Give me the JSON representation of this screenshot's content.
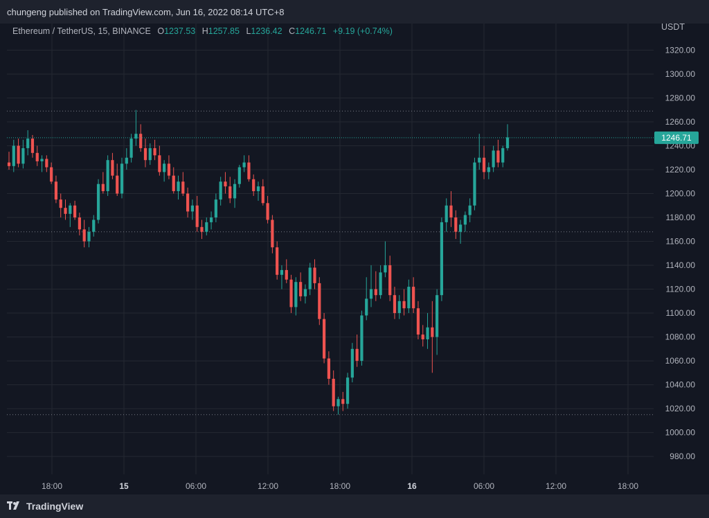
{
  "header": {
    "published_text": "chungeng published on TradingView.com, Jun 16, 2022 08:14 UTC+8"
  },
  "legend": {
    "symbol": "Ethereum / TetherUS, 15, BINANCE",
    "o_label": "O",
    "o_value": "1237.53",
    "h_label": "H",
    "h_value": "1257.85",
    "l_label": "L",
    "l_value": "1236.42",
    "c_label": "C",
    "c_value": "1246.71",
    "change": "+9.19 (+0.74%)"
  },
  "footer": {
    "brand": "TradingView"
  },
  "colors": {
    "background": "#131722",
    "up": "#26a69a",
    "down": "#ef5350",
    "grid": "#242832",
    "price_tag": "#26a69a"
  },
  "chart_data": {
    "type": "candlestick",
    "title": "Ethereum / TetherUS, 15, BINANCE",
    "y_unit": "USDT",
    "ylim": [
      965,
      1333
    ],
    "y_ticks": [
      "1320.00",
      "1300.00",
      "1280.00",
      "1260.00",
      "1240.00",
      "1220.00",
      "1200.00",
      "1180.00",
      "1160.00",
      "1140.00",
      "1120.00",
      "1100.00",
      "1080.00",
      "1060.00",
      "1040.00",
      "1020.00",
      "1000.00",
      "980.00"
    ],
    "x_ticks": [
      "18:00",
      "15",
      "06:00",
      "12:00",
      "18:00",
      "16",
      "06:00",
      "12:00",
      "18:00"
    ],
    "x_ticks_bold": [
      "15",
      "16"
    ],
    "last_price": "1246.71",
    "horizontal_levels": [
      1269,
      1168,
      1015
    ],
    "grid": true,
    "candles": [
      [
        1226,
        1235,
        1220,
        1223
      ],
      [
        1223,
        1245,
        1218,
        1240
      ],
      [
        1240,
        1246,
        1222,
        1225
      ],
      [
        1225,
        1245,
        1221,
        1238
      ],
      [
        1238,
        1253,
        1232,
        1246
      ],
      [
        1246,
        1249,
        1230,
        1234
      ],
      [
        1234,
        1240,
        1223,
        1227
      ],
      [
        1227,
        1232,
        1218,
        1229
      ],
      [
        1229,
        1232,
        1218,
        1222
      ],
      [
        1222,
        1226,
        1208,
        1210
      ],
      [
        1210,
        1215,
        1192,
        1195
      ],
      [
        1195,
        1200,
        1180,
        1188
      ],
      [
        1188,
        1195,
        1178,
        1183
      ],
      [
        1183,
        1192,
        1172,
        1190
      ],
      [
        1190,
        1194,
        1178,
        1180
      ],
      [
        1180,
        1184,
        1165,
        1170
      ],
      [
        1170,
        1178,
        1155,
        1160
      ],
      [
        1160,
        1172,
        1155,
        1168
      ],
      [
        1168,
        1182,
        1164,
        1178
      ],
      [
        1178,
        1212,
        1175,
        1208
      ],
      [
        1208,
        1218,
        1200,
        1202
      ],
      [
        1202,
        1232,
        1198,
        1228
      ],
      [
        1228,
        1234,
        1212,
        1215
      ],
      [
        1215,
        1225,
        1198,
        1200
      ],
      [
        1200,
        1230,
        1196,
        1225
      ],
      [
        1225,
        1238,
        1220,
        1230
      ],
      [
        1230,
        1250,
        1226,
        1246
      ],
      [
        1246,
        1270,
        1240,
        1250
      ],
      [
        1250,
        1258,
        1235,
        1238
      ],
      [
        1238,
        1246,
        1222,
        1228
      ],
      [
        1228,
        1242,
        1224,
        1238
      ],
      [
        1238,
        1245,
        1228,
        1232
      ],
      [
        1232,
        1240,
        1215,
        1218
      ],
      [
        1218,
        1228,
        1210,
        1225
      ],
      [
        1225,
        1232,
        1212,
        1215
      ],
      [
        1215,
        1222,
        1200,
        1202
      ],
      [
        1202,
        1215,
        1195,
        1210
      ],
      [
        1210,
        1218,
        1198,
        1200
      ],
      [
        1200,
        1205,
        1180,
        1185
      ],
      [
        1185,
        1195,
        1178,
        1190
      ],
      [
        1190,
        1198,
        1168,
        1172
      ],
      [
        1172,
        1178,
        1162,
        1168
      ],
      [
        1168,
        1180,
        1165,
        1176
      ],
      [
        1176,
        1185,
        1170,
        1180
      ],
      [
        1180,
        1200,
        1176,
        1195
      ],
      [
        1195,
        1214,
        1190,
        1210
      ],
      [
        1210,
        1218,
        1200,
        1206
      ],
      [
        1206,
        1214,
        1192,
        1196
      ],
      [
        1196,
        1212,
        1188,
        1208
      ],
      [
        1208,
        1224,
        1205,
        1222
      ],
      [
        1222,
        1232,
        1218,
        1226
      ],
      [
        1226,
        1232,
        1210,
        1212
      ],
      [
        1212,
        1216,
        1198,
        1202
      ],
      [
        1202,
        1210,
        1194,
        1206
      ],
      [
        1206,
        1212,
        1190,
        1192
      ],
      [
        1192,
        1198,
        1175,
        1178
      ],
      [
        1178,
        1182,
        1150,
        1155
      ],
      [
        1155,
        1160,
        1128,
        1132
      ],
      [
        1132,
        1140,
        1120,
        1136
      ],
      [
        1136,
        1145,
        1125,
        1128
      ],
      [
        1128,
        1132,
        1100,
        1105
      ],
      [
        1105,
        1130,
        1098,
        1126
      ],
      [
        1126,
        1134,
        1110,
        1114
      ],
      [
        1114,
        1124,
        1108,
        1120
      ],
      [
        1120,
        1142,
        1115,
        1138
      ],
      [
        1138,
        1145,
        1120,
        1125
      ],
      [
        1125,
        1130,
        1090,
        1095
      ],
      [
        1095,
        1100,
        1058,
        1062
      ],
      [
        1062,
        1068,
        1040,
        1045
      ],
      [
        1045,
        1052,
        1018,
        1022
      ],
      [
        1022,
        1030,
        1015,
        1028
      ],
      [
        1028,
        1034,
        1018,
        1024
      ],
      [
        1024,
        1050,
        1020,
        1046
      ],
      [
        1046,
        1075,
        1042,
        1070
      ],
      [
        1070,
        1082,
        1055,
        1060
      ],
      [
        1060,
        1102,
        1056,
        1098
      ],
      [
        1098,
        1130,
        1094,
        1112
      ],
      [
        1112,
        1140,
        1105,
        1120
      ],
      [
        1120,
        1135,
        1110,
        1115
      ],
      [
        1115,
        1140,
        1112,
        1134
      ],
      [
        1134,
        1160,
        1130,
        1140
      ],
      [
        1140,
        1148,
        1110,
        1115
      ],
      [
        1115,
        1122,
        1095,
        1100
      ],
      [
        1100,
        1115,
        1095,
        1110
      ],
      [
        1110,
        1120,
        1098,
        1104
      ],
      [
        1104,
        1128,
        1100,
        1122
      ],
      [
        1122,
        1130,
        1100,
        1104
      ],
      [
        1104,
        1110,
        1078,
        1082
      ],
      [
        1082,
        1090,
        1072,
        1078
      ],
      [
        1078,
        1100,
        1070,
        1088
      ],
      [
        1088,
        1110,
        1050,
        1080
      ],
      [
        1080,
        1120,
        1065,
        1115
      ],
      [
        1115,
        1180,
        1110,
        1176
      ],
      [
        1176,
        1196,
        1168,
        1190
      ],
      [
        1190,
        1202,
        1172,
        1180
      ],
      [
        1180,
        1186,
        1162,
        1168
      ],
      [
        1168,
        1178,
        1158,
        1174
      ],
      [
        1174,
        1185,
        1168,
        1182
      ],
      [
        1182,
        1196,
        1176,
        1190
      ],
      [
        1190,
        1230,
        1186,
        1226
      ],
      [
        1226,
        1250,
        1220,
        1230
      ],
      [
        1230,
        1240,
        1212,
        1218
      ],
      [
        1218,
        1226,
        1212,
        1222
      ],
      [
        1222,
        1240,
        1218,
        1236
      ],
      [
        1236,
        1245,
        1222,
        1226
      ],
      [
        1226,
        1240,
        1222,
        1238
      ],
      [
        1238,
        1258,
        1236,
        1247
      ]
    ]
  }
}
